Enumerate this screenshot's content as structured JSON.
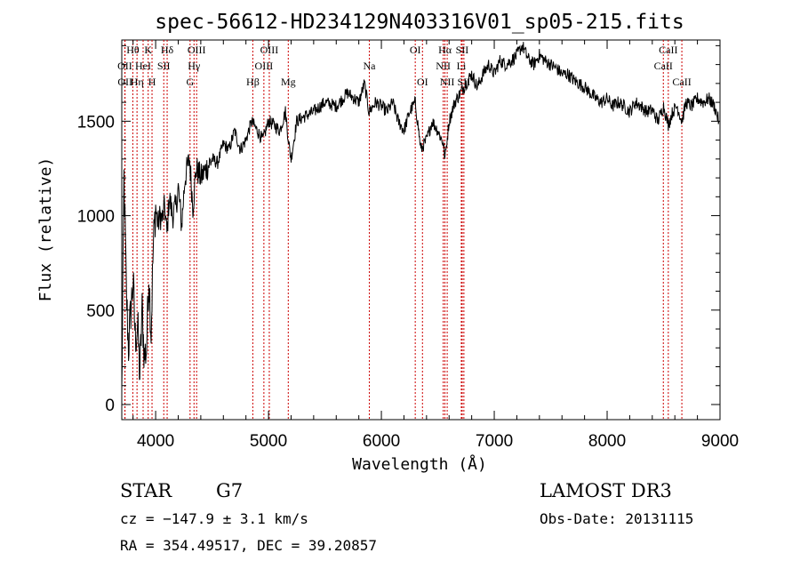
{
  "chart_data": {
    "type": "line",
    "title": "spec-56612-HD234129N403316V01_sp05-215.fits",
    "xlabel": "Wavelength (Å)",
    "ylabel": "Flux (relative)",
    "xlim": [
      3700,
      9000
    ],
    "ylim": [
      -80,
      1930
    ],
    "xticks": [
      4000,
      5000,
      6000,
      7000,
      8000,
      9000
    ],
    "yticks": [
      0,
      500,
      1000,
      1500
    ],
    "series": [
      {
        "name": "flux",
        "x": [
          3700,
          3720,
          3740,
          3760,
          3780,
          3800,
          3820,
          3840,
          3860,
          3880,
          3900,
          3920,
          3940,
          3960,
          3980,
          4000,
          4020,
          4040,
          4060,
          4080,
          4100,
          4120,
          4150,
          4180,
          4200,
          4230,
          4260,
          4300,
          4330,
          4360,
          4400,
          4450,
          4500,
          4550,
          4600,
          4650,
          4700,
          4750,
          4800,
          4850,
          4900,
          4950,
          5000,
          5050,
          5100,
          5150,
          5180,
          5200,
          5250,
          5300,
          5400,
          5500,
          5600,
          5700,
          5800,
          5850,
          5890,
          5950,
          6000,
          6050,
          6100,
          6150,
          6200,
          6250,
          6300,
          6350,
          6400,
          6450,
          6500,
          6550,
          6563,
          6600,
          6650,
          6700,
          6750,
          6800,
          6850,
          6900,
          6950,
          7000,
          7050,
          7100,
          7150,
          7200,
          7250,
          7300,
          7350,
          7400,
          7450,
          7500,
          7550,
          7600,
          7650,
          7700,
          7750,
          7800,
          7850,
          7900,
          7950,
          8000,
          8050,
          8100,
          8150,
          8200,
          8250,
          8300,
          8350,
          8400,
          8450,
          8500,
          8542,
          8580,
          8620,
          8662,
          8700,
          8750,
          8800,
          8850,
          8900,
          8950,
          8990
        ],
        "values": [
          50,
          1200,
          600,
          300,
          500,
          650,
          350,
          420,
          150,
          500,
          250,
          300,
          700,
          380,
          850,
          1050,
          950,
          1000,
          980,
          1050,
          900,
          1100,
          1000,
          1050,
          1150,
          950,
          1200,
          1300,
          1050,
          1250,
          1200,
          1250,
          1300,
          1280,
          1380,
          1350,
          1450,
          1350,
          1400,
          1500,
          1450,
          1400,
          1500,
          1480,
          1450,
          1550,
          1380,
          1300,
          1500,
          1520,
          1550,
          1600,
          1580,
          1650,
          1600,
          1700,
          1550,
          1600,
          1580,
          1550,
          1600,
          1500,
          1450,
          1550,
          1600,
          1350,
          1400,
          1500,
          1450,
          1380,
          1300,
          1500,
          1600,
          1650,
          1700,
          1750,
          1680,
          1750,
          1800,
          1750,
          1820,
          1800,
          1820,
          1850,
          1900,
          1830,
          1800,
          1850,
          1820,
          1800,
          1780,
          1750,
          1750,
          1720,
          1700,
          1680,
          1650,
          1620,
          1600,
          1620,
          1580,
          1600,
          1580,
          1550,
          1600,
          1580,
          1550,
          1560,
          1500,
          1580,
          1480,
          1550,
          1580,
          1500,
          1600,
          1580,
          1620,
          1600,
          1620,
          1580,
          1500
        ]
      }
    ],
    "spectral_lines": [
      {
        "label": "Hθ",
        "x": 3798,
        "row": 1
      },
      {
        "label": "OII",
        "x": 3727,
        "row": 2
      },
      {
        "label": "OII",
        "x": 3729,
        "row": 3
      },
      {
        "label": "K",
        "x": 3934,
        "row": 1
      },
      {
        "label": "HeI",
        "x": 3889,
        "row": 2
      },
      {
        "label": "Hη",
        "x": 3835,
        "row": 3
      },
      {
        "label": "SII",
        "x": 4072,
        "row": 2
      },
      {
        "label": "H",
        "x": 3968,
        "row": 3
      },
      {
        "label": "Hδ",
        "x": 4102,
        "row": 1
      },
      {
        "label": "OIII",
        "x": 4363,
        "row": 1
      },
      {
        "label": "Hγ",
        "x": 4340,
        "row": 2
      },
      {
        "label": "G",
        "x": 4305,
        "row": 3
      },
      {
        "label": "OIII",
        "x": 5007,
        "row": 1
      },
      {
        "label": "OIII",
        "x": 4959,
        "row": 2
      },
      {
        "label": "Hβ",
        "x": 4861,
        "row": 3
      },
      {
        "label": "Mg",
        "x": 5175,
        "row": 3
      },
      {
        "label": "Na",
        "x": 5893,
        "row": 2
      },
      {
        "label": "OI",
        "x": 6300,
        "row": 1
      },
      {
        "label": "OI",
        "x": 6364,
        "row": 3
      },
      {
        "label": "Hα",
        "x": 6563,
        "row": 1
      },
      {
        "label": "SII",
        "x": 6716,
        "row": 1
      },
      {
        "label": "NII",
        "x": 6548,
        "row": 2
      },
      {
        "label": "Li",
        "x": 6708,
        "row": 2
      },
      {
        "label": "NII",
        "x": 6583,
        "row": 3
      },
      {
        "label": "SII",
        "x": 6731,
        "row": 3
      },
      {
        "label": "CaII",
        "x": 8542,
        "row": 1
      },
      {
        "label": "CaII",
        "x": 8498,
        "row": 2
      },
      {
        "label": "CaII",
        "x": 8662,
        "row": 3
      }
    ],
    "line_color": "#cc0000"
  },
  "info": {
    "object_class": "STAR",
    "subclass": "G7",
    "survey": "LAMOST DR3",
    "redshift": "cz = −147.9 ± 3.1 km/s",
    "obs_date": "Obs-Date: 20131115",
    "coords": "RA = 354.49517, DEC =  39.20857"
  }
}
